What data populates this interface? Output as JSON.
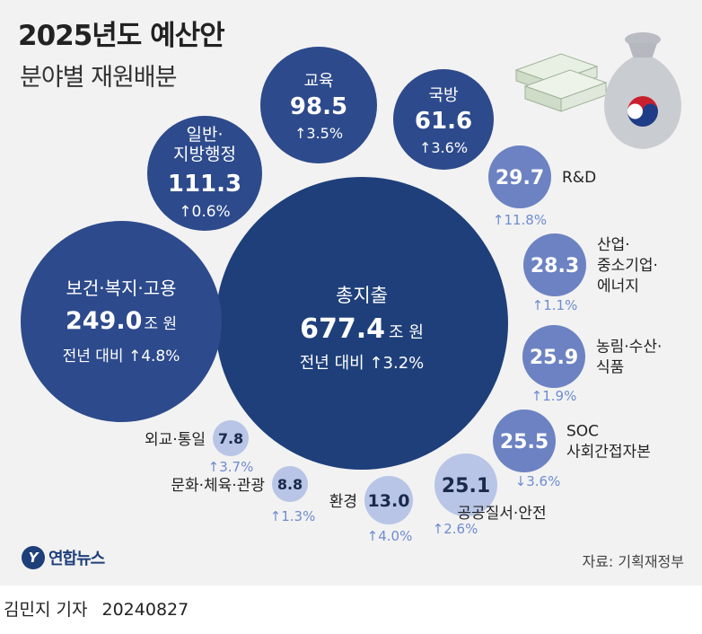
{
  "title": "2025년도 예산안",
  "subtitle": "분야별 재원배분",
  "source": "자료: 기획재정부",
  "logo_text": "연합뉴스",
  "footer": {
    "author": "김민지 기자",
    "date": "20240827"
  },
  "colors": {
    "dark": "#1e3f7a",
    "mid": "#2d4a8c",
    "light": "#6c82c2",
    "pale": "#b8c5e6",
    "change": "#6f8ccf",
    "background": "#f2f2f2"
  },
  "chart_data": {
    "type": "bubble",
    "unit": "조 원",
    "total": {
      "label": "총지출",
      "value": "677.4",
      "unit": "조 원",
      "change": "전년 대비 ↑3.2%"
    },
    "items": [
      {
        "label": "보건·복지·고용",
        "value": "249.0",
        "unit": "조 원",
        "change": "전년 대비 ↑4.8%"
      },
      {
        "label": "일반·지방행정",
        "value": "111.3",
        "change": "↑0.6%"
      },
      {
        "label": "교육",
        "value": "98.5",
        "change": "↑3.5%"
      },
      {
        "label": "국방",
        "value": "61.6",
        "change": "↑3.6%"
      },
      {
        "label": "R&D",
        "value": "29.7",
        "change": "↑11.8%"
      },
      {
        "label": "산업·중소기업·에너지",
        "value": "28.3",
        "change": "↑1.1%"
      },
      {
        "label": "농림·수산·식품",
        "value": "25.9",
        "change": "↑1.9%"
      },
      {
        "label": "SOC 사회간접자본",
        "value": "25.5",
        "change": "↓3.6%"
      },
      {
        "label": "공공질서·안전",
        "value": "25.1",
        "change": "↑2.6%"
      },
      {
        "label": "환경",
        "value": "13.0",
        "change": "↑4.0%"
      },
      {
        "label": "문화·체육·관광",
        "value": "8.8",
        "change": "↑1.3%"
      },
      {
        "label": "외교·통일",
        "value": "7.8",
        "change": "↑3.7%"
      }
    ]
  }
}
